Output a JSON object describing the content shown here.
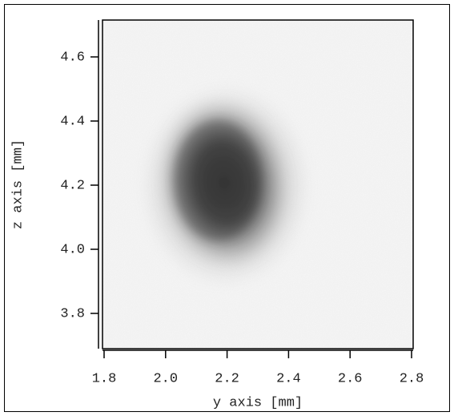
{
  "chart_data": {
    "type": "heatmap",
    "x_label": "y axis [mm]",
    "y_label": "z axis [mm]",
    "xlim": [
      1.8,
      2.8
    ],
    "xticks": [
      1.8,
      {
        "value": 2,
        "label": "2.0"
      },
      2.2,
      2.4,
      2.6,
      2.8
    ],
    "ylim": [
      3.69,
      4.715
    ],
    "yticks": [
      3.8,
      {
        "value": 4,
        "label": "4.0"
      },
      4.2,
      4.4,
      4.6
    ]
  }
}
